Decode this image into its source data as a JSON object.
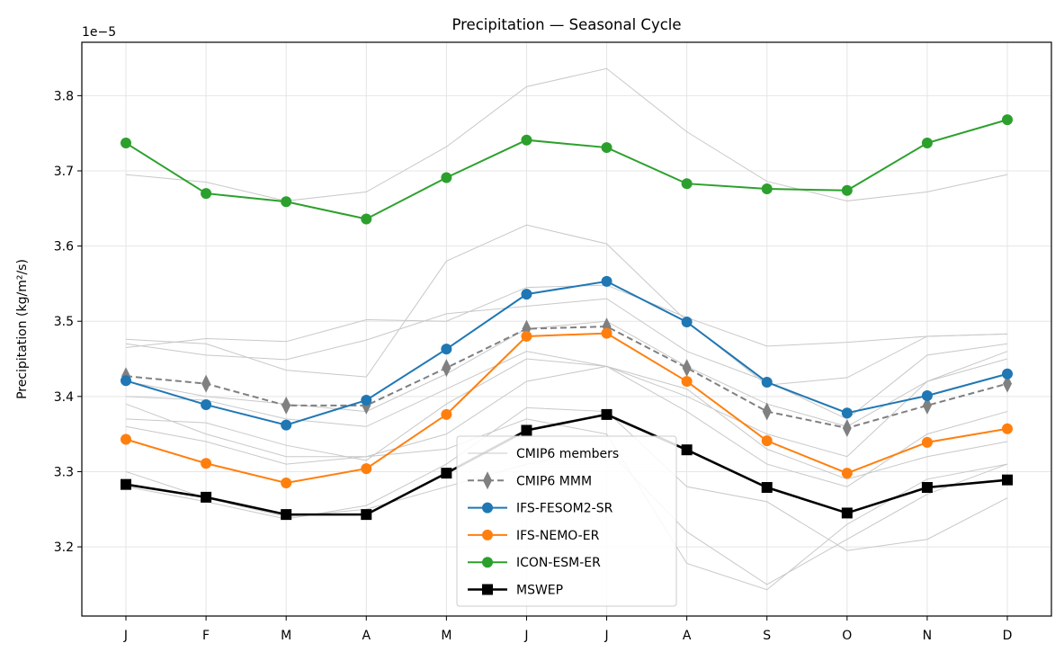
{
  "chart_data": {
    "type": "line",
    "title": "Precipitation — Seasonal Cycle",
    "xlabel": "",
    "ylabel": "Precipitation (kg/m²/s)",
    "y_offset_label": "1e−5",
    "categories": [
      "J",
      "F",
      "M",
      "A",
      "M",
      "J",
      "J",
      "A",
      "S",
      "O",
      "N",
      "D"
    ],
    "ylim": [
      3.108,
      3.871
    ],
    "yticks": [
      "3.2",
      "3.3",
      "3.4",
      "3.5",
      "3.6",
      "3.7",
      "3.8"
    ],
    "grid": true,
    "legend_placement": "lower-center",
    "members_label": "CMIP6 members",
    "members_color": "#c8c8c8",
    "members": [
      [
        3.695,
        3.685,
        3.66,
        3.672,
        3.732,
        3.812,
        3.836,
        3.752,
        3.686,
        3.66,
        3.672,
        3.695
      ],
      [
        3.476,
        3.47,
        3.435,
        3.426,
        3.58,
        3.628,
        3.603,
        3.5,
        3.415,
        3.425,
        3.48,
        3.483
      ],
      [
        3.465,
        3.477,
        3.473,
        3.502,
        3.5,
        3.545,
        3.548,
        3.505,
        3.467,
        3.472,
        3.48,
        3.483
      ],
      [
        3.47,
        3.455,
        3.449,
        3.475,
        3.51,
        3.52,
        3.53,
        3.46,
        3.42,
        3.37,
        3.455,
        3.47
      ],
      [
        3.4,
        3.395,
        3.37,
        3.36,
        3.41,
        3.46,
        3.44,
        3.4,
        3.35,
        3.32,
        3.42,
        3.46
      ],
      [
        3.37,
        3.365,
        3.335,
        3.315,
        3.39,
        3.45,
        3.44,
        3.38,
        3.31,
        3.28,
        3.35,
        3.38
      ],
      [
        3.36,
        3.34,
        3.31,
        3.32,
        3.35,
        3.42,
        3.44,
        3.41,
        3.33,
        3.29,
        3.32,
        3.34
      ],
      [
        3.3,
        3.265,
        3.24,
        3.25,
        3.28,
        3.31,
        3.33,
        3.22,
        3.15,
        3.21,
        3.27,
        3.31
      ],
      [
        3.28,
        3.26,
        3.237,
        3.255,
        3.31,
        3.385,
        3.38,
        3.28,
        3.26,
        3.195,
        3.21,
        3.265
      ],
      [
        3.42,
        3.4,
        3.39,
        3.38,
        3.43,
        3.49,
        3.5,
        3.44,
        3.39,
        3.36,
        3.42,
        3.45
      ],
      [
        3.39,
        3.35,
        3.32,
        3.32,
        3.33,
        3.37,
        3.35,
        3.178,
        3.143,
        3.23,
        3.29,
        3.31
      ]
    ],
    "series": [
      {
        "name": "CMIP6 MMM",
        "color": "#808080",
        "marker": "diamond",
        "dashed": true,
        "values": [
          3.427,
          3.417,
          3.388,
          3.388,
          3.438,
          3.49,
          3.493,
          3.438,
          3.38,
          3.358,
          3.388,
          3.417
        ]
      },
      {
        "name": "IFS-FESOM2-SR",
        "color": "#1f77b4",
        "marker": "circle",
        "dashed": false,
        "values": [
          3.421,
          3.389,
          3.362,
          3.395,
          3.463,
          3.536,
          3.553,
          3.499,
          3.419,
          3.378,
          3.401,
          3.43
        ]
      },
      {
        "name": "IFS-NEMO-ER",
        "color": "#ff7f0e",
        "marker": "circle",
        "dashed": false,
        "values": [
          3.343,
          3.311,
          3.285,
          3.304,
          3.376,
          3.48,
          3.484,
          3.42,
          3.341,
          3.298,
          3.339,
          3.357
        ]
      },
      {
        "name": "ICON-ESM-ER",
        "color": "#2ca02c",
        "marker": "circle",
        "dashed": false,
        "values": [
          3.737,
          3.67,
          3.659,
          3.636,
          3.691,
          3.741,
          3.731,
          3.683,
          3.676,
          3.674,
          3.737,
          3.768
        ]
      },
      {
        "name": "MSWEP",
        "color": "#000000",
        "marker": "square",
        "dashed": false,
        "values": [
          3.283,
          3.266,
          3.243,
          3.243,
          3.298,
          3.355,
          3.376,
          3.329,
          3.279,
          3.245,
          3.279,
          3.289
        ]
      }
    ]
  }
}
